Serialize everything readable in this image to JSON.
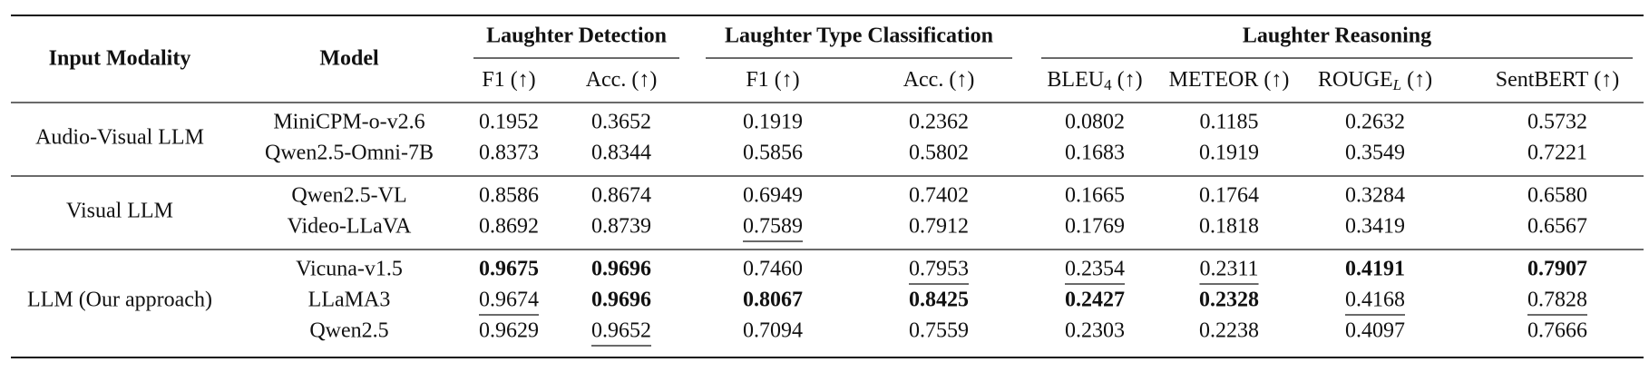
{
  "table": {
    "header": {
      "modality": "Input Modality",
      "model": "Model"
    },
    "groups": [
      {
        "title": "Laughter Detection",
        "columns": [
          {
            "label": "F1",
            "arrow": "(↑)"
          },
          {
            "label": "Acc.",
            "arrow": "(↑)"
          }
        ]
      },
      {
        "title": "Laughter Type Classification",
        "columns": [
          {
            "label": "F1",
            "arrow": "(↑)"
          },
          {
            "label": "Acc.",
            "arrow": "(↑)"
          }
        ]
      },
      {
        "title": "Laughter Reasoning",
        "columns": [
          {
            "label": "BLEU",
            "sub": "4",
            "arrow": "(↑)"
          },
          {
            "label": "METEOR",
            "arrow": "(↑)"
          },
          {
            "label": "ROUGE",
            "sub": "L",
            "sub_italic": true,
            "arrow": "(↑)"
          },
          {
            "label": "SentBERT",
            "arrow": "(↑)"
          }
        ]
      }
    ],
    "rows": [
      {
        "modality": "Audio-Visual LLM",
        "models": [
          {
            "name": "MiniCPM-o-v2.6",
            "values": [
              "0.1952",
              "0.3652",
              "0.1919",
              "0.2362",
              "0.0802",
              "0.1185",
              "0.2632",
              "0.5732"
            ],
            "bold": [],
            "underline": []
          },
          {
            "name": "Qwen2.5-Omni-7B",
            "values": [
              "0.8373",
              "0.8344",
              "0.5856",
              "0.5802",
              "0.1683",
              "0.1919",
              "0.3549",
              "0.7221"
            ],
            "bold": [],
            "underline": []
          }
        ]
      },
      {
        "modality": "Visual LLM",
        "models": [
          {
            "name": "Qwen2.5-VL",
            "values": [
              "0.8586",
              "0.8674",
              "0.6949",
              "0.7402",
              "0.1665",
              "0.1764",
              "0.3284",
              "0.6580"
            ],
            "bold": [],
            "underline": []
          },
          {
            "name": "Video-LLaVA",
            "values": [
              "0.8692",
              "0.8739",
              "0.7589",
              "0.7912",
              "0.1769",
              "0.1818",
              "0.3419",
              "0.6567"
            ],
            "bold": [],
            "underline": [
              2
            ]
          }
        ]
      },
      {
        "modality": "LLM (Our approach)",
        "models": [
          {
            "name": "Vicuna-v1.5",
            "values": [
              "0.9675",
              "0.9696",
              "0.7460",
              "0.7953",
              "0.2354",
              "0.2311",
              "0.4191",
              "0.7907"
            ],
            "bold": [
              0,
              1,
              6,
              7
            ],
            "underline": [
              3,
              4,
              5
            ]
          },
          {
            "name": "LLaMA3",
            "values": [
              "0.9674",
              "0.9696",
              "0.8067",
              "0.8425",
              "0.2427",
              "0.2328",
              "0.4168",
              "0.7828"
            ],
            "bold": [
              1,
              2,
              3,
              4,
              5
            ],
            "underline": [
              0,
              6,
              7
            ]
          },
          {
            "name": "Qwen2.5",
            "values": [
              "0.9629",
              "0.9652",
              "0.7094",
              "0.7559",
              "0.2303",
              "0.2238",
              "0.4097",
              "0.7666"
            ],
            "bold": [],
            "underline": [
              1
            ]
          }
        ]
      }
    ]
  }
}
